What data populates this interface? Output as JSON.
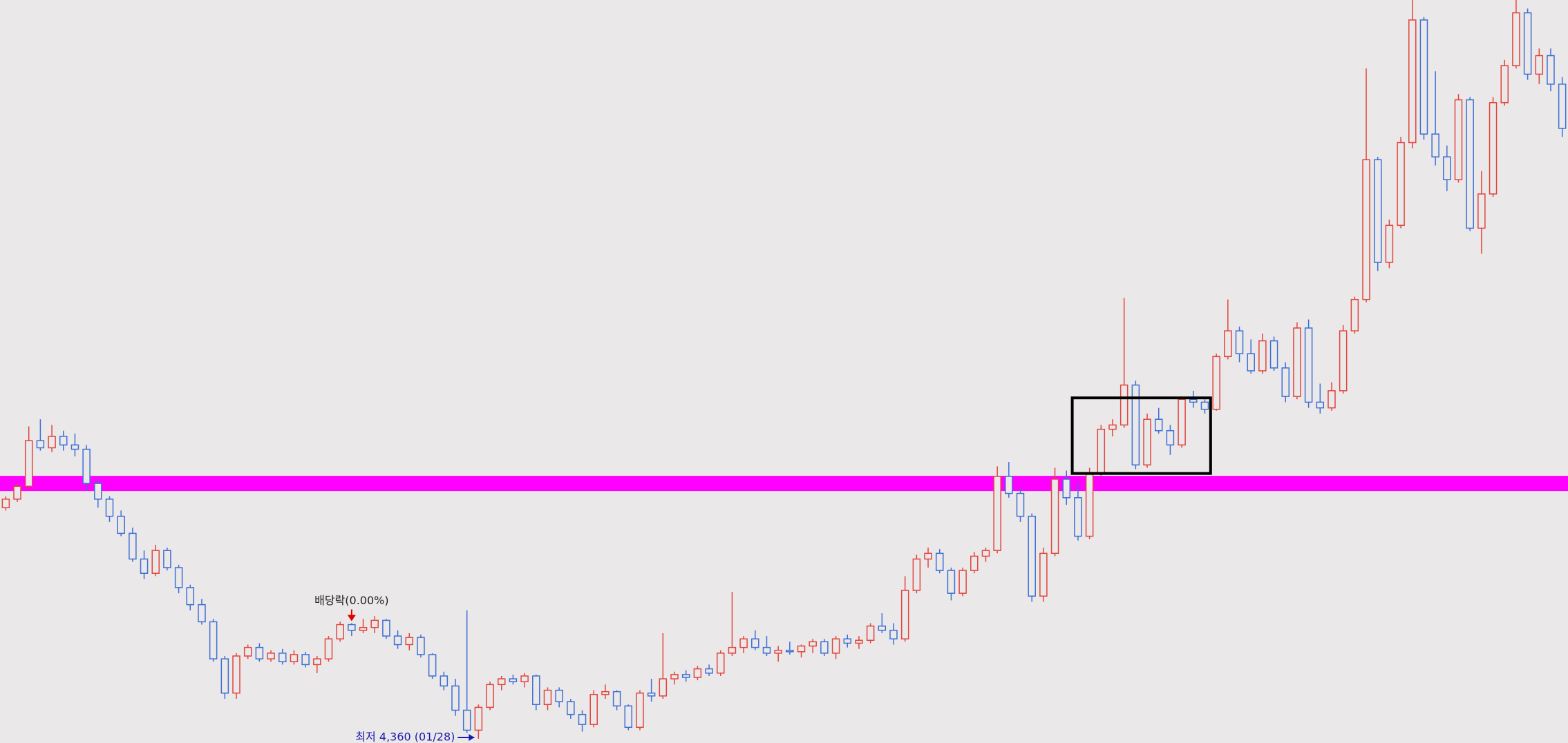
{
  "chart_data": {
    "type": "candlestick",
    "up_color": "#e3443c",
    "down_color": "#3d6fd6",
    "ylim": [
      4330,
      9540
    ],
    "open": [
      5980,
      6040,
      6130,
      6450,
      6400,
      6480,
      6420,
      6390,
      6150,
      6040,
      5920,
      5800,
      5620,
      5520,
      5680,
      5560,
      5420,
      5300,
      5180,
      4920,
      4680,
      4940,
      5000,
      4920,
      4960,
      4900,
      4950,
      4880,
      4920,
      5060,
      5160,
      5120,
      5140,
      5190,
      5080,
      5020,
      5070,
      4950,
      4800,
      4730,
      4560,
      4420,
      4580,
      4740,
      4780,
      4760,
      4800,
      4600,
      4700,
      4620,
      4530,
      4460,
      4670,
      4690,
      4590,
      4440,
      4680,
      4660,
      4780,
      4810,
      4790,
      4850,
      4820,
      4960,
      5000,
      5060,
      5000,
      4960,
      4980,
      4970,
      5010,
      5040,
      4960,
      5060,
      5030,
      5050,
      5150,
      5120,
      5060,
      5400,
      5620,
      5660,
      5540,
      5380,
      5540,
      5640,
      5680,
      6200,
      6080,
      5920,
      5360,
      5660,
      6180,
      6050,
      5780,
      6220,
      6530,
      6560,
      6840,
      6280,
      6600,
      6520,
      6420,
      6740,
      6720,
      6670,
      7040,
      7220,
      7060,
      6940,
      7150,
      6960,
      6760,
      7240,
      6720,
      6680,
      6800,
      7220,
      7440,
      8420,
      7700,
      7960,
      8540,
      9400,
      8600,
      8440,
      8280,
      8840,
      7940,
      8180,
      8820,
      9080,
      9450,
      9020,
      9150,
      8950
    ],
    "high": [
      6060,
      6150,
      6550,
      6600,
      6560,
      6520,
      6500,
      6420,
      6180,
      6060,
      5960,
      5840,
      5680,
      5720,
      5700,
      5580,
      5440,
      5340,
      5200,
      4940,
      4960,
      5020,
      5030,
      4980,
      4990,
      4980,
      4970,
      4940,
      5080,
      5180,
      5170,
      5200,
      5220,
      5200,
      5120,
      5100,
      5090,
      4960,
      4830,
      4780,
      5260,
      4600,
      4760,
      4800,
      4810,
      4820,
      4810,
      4720,
      4720,
      4640,
      4560,
      4700,
      4740,
      4700,
      4600,
      4700,
      4780,
      5100,
      4830,
      4840,
      4870,
      4880,
      4980,
      5390,
      5080,
      5120,
      5080,
      5010,
      5040,
      5020,
      5060,
      5060,
      5080,
      5090,
      5080,
      5170,
      5240,
      5170,
      5500,
      5650,
      5700,
      5690,
      5560,
      5560,
      5670,
      5700,
      6270,
      6300,
      6120,
      5940,
      5700,
      6260,
      6240,
      6150,
      6260,
      6560,
      6600,
      7450,
      6870,
      6640,
      6680,
      6560,
      6760,
      6800,
      6740,
      7060,
      7440,
      7250,
      7160,
      7200,
      7180,
      7000,
      7280,
      7300,
      6850,
      6860,
      7260,
      7460,
      9060,
      8440,
      8000,
      8580,
      9540,
      9420,
      9040,
      8520,
      8880,
      8860,
      8340,
      8860,
      9120,
      9540,
      9480,
      9200,
      9200,
      9000
    ],
    "low": [
      5960,
      6020,
      6120,
      6380,
      6370,
      6380,
      6340,
      6100,
      5980,
      5880,
      5780,
      5600,
      5480,
      5500,
      5540,
      5380,
      5260,
      5160,
      4900,
      4640,
      4640,
      4920,
      4900,
      4900,
      4880,
      4880,
      4860,
      4820,
      4900,
      5040,
      5080,
      5100,
      5100,
      5060,
      4990,
      4980,
      4930,
      4780,
      4700,
      4520,
      4400,
      4360,
      4560,
      4700,
      4740,
      4720,
      4560,
      4560,
      4580,
      4500,
      4410,
      4440,
      4640,
      4560,
      4420,
      4420,
      4620,
      4640,
      4740,
      4760,
      4770,
      4800,
      4800,
      4940,
      4960,
      4980,
      4940,
      4900,
      4950,
      4930,
      4960,
      4940,
      4920,
      5000,
      4990,
      5030,
      5100,
      5020,
      5040,
      5380,
      5560,
      5520,
      5330,
      5360,
      5520,
      5600,
      5660,
      6050,
      5880,
      5320,
      5320,
      5640,
      6000,
      5750,
      5760,
      6200,
      6480,
      6540,
      6250,
      6260,
      6500,
      6350,
      6400,
      6680,
      6640,
      6660,
      7020,
      7000,
      6920,
      6920,
      6940,
      6720,
      6740,
      6680,
      6640,
      6660,
      6780,
      7200,
      7420,
      7640,
      7660,
      7940,
      8500,
      8560,
      8380,
      8200,
      8260,
      7920,
      7760,
      8160,
      8800,
      9060,
      8980,
      8950,
      8900,
      8580
    ],
    "close": [
      6040,
      6130,
      6450,
      6400,
      6480,
      6420,
      6390,
      6150,
      6040,
      5920,
      5800,
      5620,
      5520,
      5680,
      5560,
      5420,
      5300,
      5180,
      4920,
      4680,
      4940,
      5000,
      4920,
      4960,
      4900,
      4950,
      4880,
      4920,
      5060,
      5160,
      5120,
      5140,
      5190,
      5080,
      5020,
      5070,
      4950,
      4800,
      4730,
      4560,
      4420,
      4580,
      4740,
      4780,
      4760,
      4800,
      4600,
      4700,
      4620,
      4530,
      4460,
      4670,
      4690,
      4590,
      4440,
      4680,
      4660,
      4780,
      4810,
      4790,
      4850,
      4820,
      4960,
      5000,
      5060,
      5000,
      4960,
      4980,
      4970,
      5010,
      5040,
      4960,
      5060,
      5030,
      5050,
      5150,
      5120,
      5060,
      5400,
      5620,
      5660,
      5540,
      5380,
      5540,
      5640,
      5680,
      6200,
      6080,
      5920,
      5360,
      5660,
      6180,
      6050,
      5780,
      6220,
      6530,
      6560,
      6840,
      6280,
      6600,
      6520,
      6420,
      6740,
      6720,
      6670,
      7040,
      7220,
      7060,
      6940,
      7150,
      6960,
      6760,
      7240,
      6720,
      6680,
      6800,
      7220,
      7440,
      8420,
      7700,
      7960,
      8540,
      9400,
      8600,
      8440,
      8280,
      8840,
      7940,
      8180,
      8820,
      9080,
      9450,
      9020,
      9150,
      8950,
      8640
    ],
    "hline": {
      "value": 6150,
      "color": "#ff00ff"
    },
    "box": {
      "start": 93,
      "end": 104,
      "top": 6750,
      "bottom": 6220
    },
    "annotations": [
      {
        "text": "배당락(0.00%)",
        "index": 30,
        "color": "#e00000"
      },
      {
        "text": "최저 4,360 (01/28)",
        "index": 41,
        "color": "#1a1ab0"
      }
    ]
  }
}
